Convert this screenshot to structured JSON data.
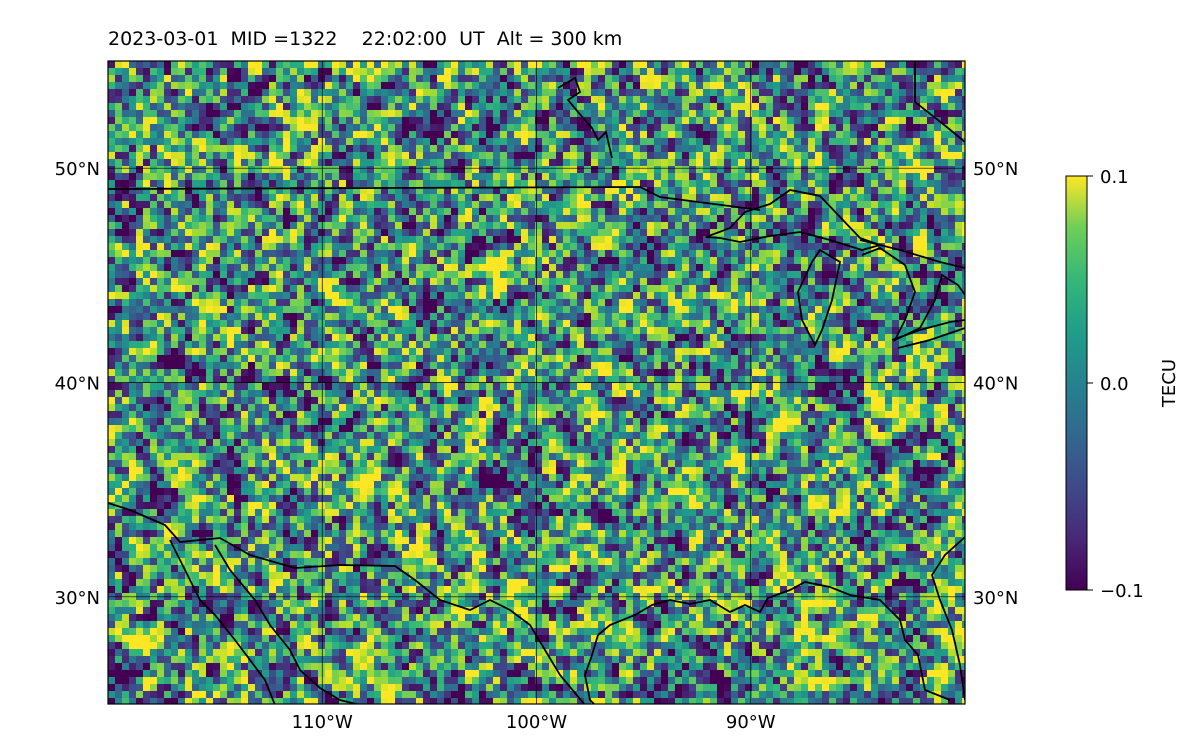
{
  "title": {
    "date": "2023-03-01",
    "mid": "MID =1322",
    "time": "22:02:00",
    "ut": "UT",
    "altitude": "Alt = 300 km"
  },
  "map": {
    "lon_range": [
      -120,
      -80
    ],
    "lat_range": [
      25,
      55
    ],
    "x_ticks": [
      {
        "lon": -110,
        "label": "110°W"
      },
      {
        "lon": -100,
        "label": "100°W"
      },
      {
        "lon": -90,
        "label": "90°W"
      }
    ],
    "y_ticks": [
      {
        "lat": 50,
        "label": "50°N"
      },
      {
        "lat": 40,
        "label": "40°N"
      },
      {
        "lat": 30,
        "label": "30°N"
      }
    ],
    "gridlines": true,
    "colormap": "viridis"
  },
  "colorbar": {
    "label": "TECU",
    "min": -0.1,
    "max": 0.1,
    "ticks": [
      {
        "value": 0.1,
        "label": "0.1"
      },
      {
        "value": 0.0,
        "label": "0.0"
      },
      {
        "value": -0.1,
        "label": "−0.1"
      }
    ]
  },
  "colors": {
    "viridis_low": "#440154",
    "viridis_mid": "#21918c",
    "viridis_high": "#fde725",
    "coastline": "#000000",
    "grid": "#000000"
  }
}
